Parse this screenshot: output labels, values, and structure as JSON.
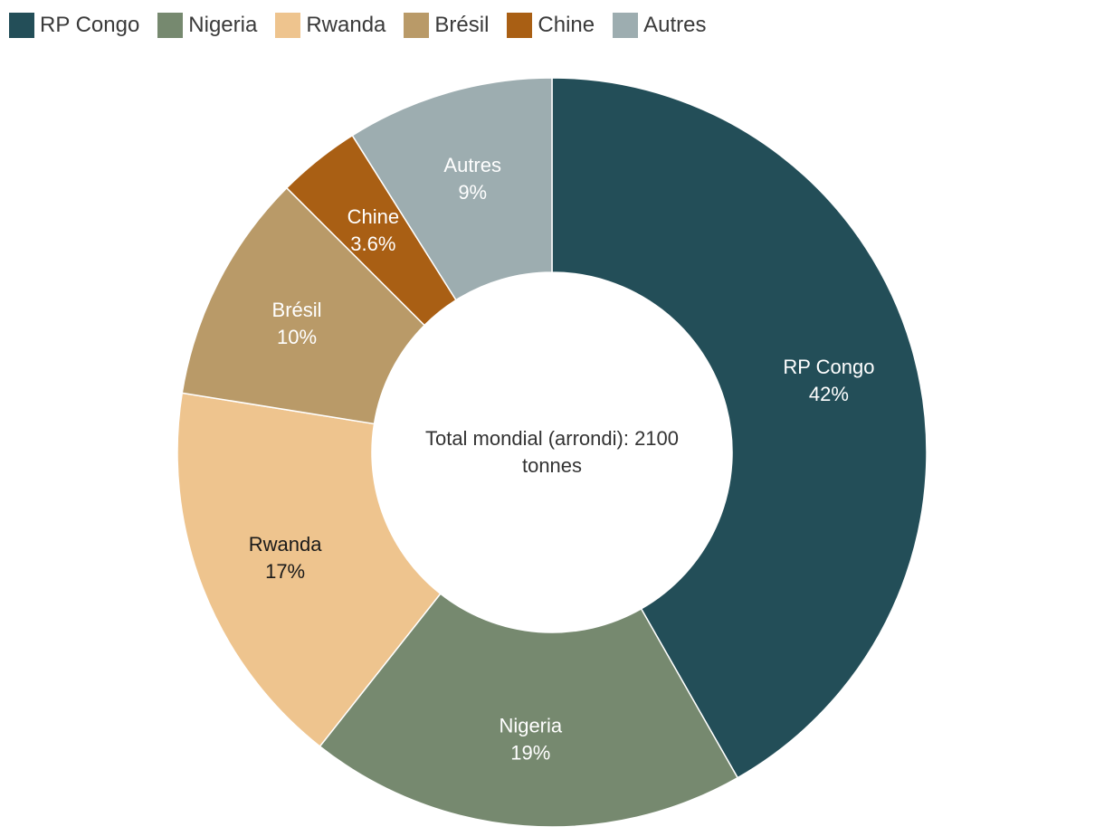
{
  "chart_data": {
    "type": "pie",
    "donut": true,
    "legend_position": "top-left",
    "center_text": [
      "Total mondial (arrondi): 2100",
      "tonnes"
    ],
    "slices": [
      {
        "name": "RP Congo",
        "value": 42,
        "value_label": "42%",
        "color": "#234e58",
        "label_color": "#ffffff"
      },
      {
        "name": "Nigeria",
        "value": 19,
        "value_label": "19%",
        "color": "#76896f",
        "label_color": "#ffffff"
      },
      {
        "name": "Rwanda",
        "value": 17,
        "value_label": "17%",
        "color": "#eec48e",
        "label_color": "#1a1a1a"
      },
      {
        "name": "Brésil",
        "value": 10,
        "value_label": "10%",
        "color": "#b99a68",
        "label_color": "#ffffff"
      },
      {
        "name": "Chine",
        "value": 3.6,
        "value_label": "3.6%",
        "color": "#a95f14",
        "label_color": "#ffffff"
      },
      {
        "name": "Autres",
        "value": 9,
        "value_label": "9%",
        "color": "#9dadb0",
        "label_color": "#ffffff"
      }
    ]
  }
}
